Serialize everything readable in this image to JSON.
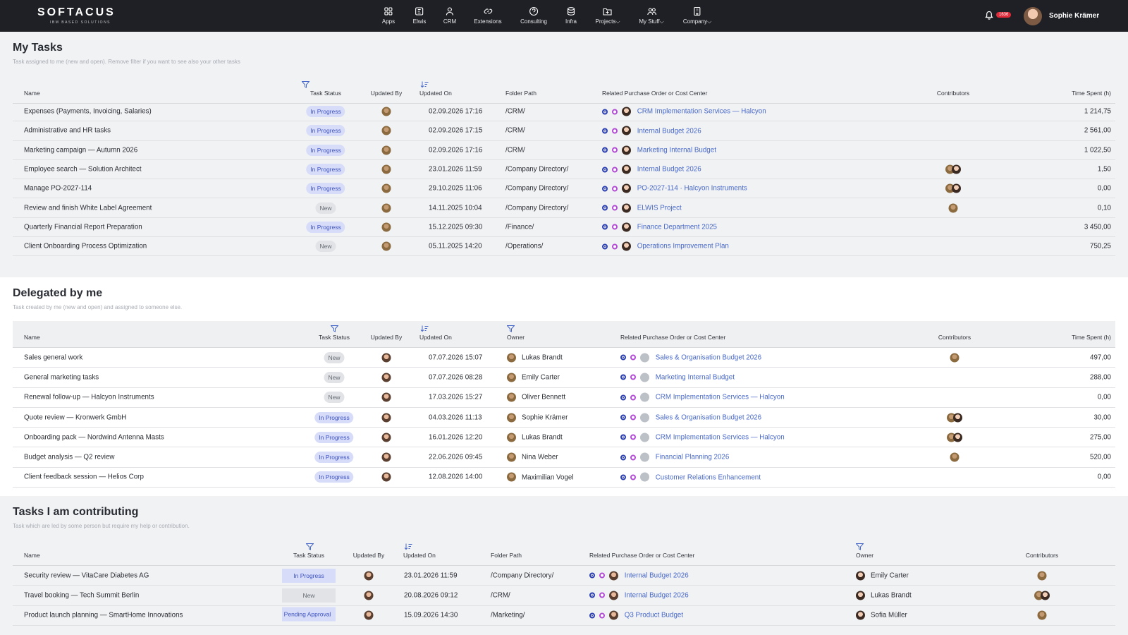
{
  "app": {
    "logo": "SOFTACUS",
    "logo_sub": "IBM BASED SOLUTIONS",
    "notif_count": "1636",
    "user": "Sophie Krämer"
  },
  "nav": [
    {
      "label": "Apps",
      "icon": "grid-icon"
    },
    {
      "label": "Elwis",
      "icon": "elwis-icon"
    },
    {
      "label": "CRM",
      "icon": "person-icon"
    },
    {
      "label": "Extensions",
      "icon": "link-icon"
    },
    {
      "label": "Consulting",
      "icon": "help-icon"
    },
    {
      "label": "Infra",
      "icon": "database-icon"
    },
    {
      "label": "Projects",
      "icon": "folder-icon",
      "dropdown": true
    },
    {
      "label": "My Stuff",
      "icon": "people-icon",
      "dropdown": true
    },
    {
      "label": "Company",
      "icon": "building-icon",
      "dropdown": true
    }
  ],
  "my_tasks": {
    "title": "My Tasks",
    "subtitle": "Task assigned to me (new and open). Remove filter if you want to see also your other tasks",
    "cols": {
      "name": "Name",
      "status": "Task Status",
      "updated_by": "Updated By",
      "updated_on": "Updated On",
      "folder": "Folder Path",
      "related": "Related Purchase Order or Cost Center",
      "contributors": "Contributors",
      "time": "Time Spent (h)"
    },
    "rows": [
      {
        "name": "Expenses (Payments, Invoicing, Salaries)",
        "status": "In Progress",
        "updated_on": "02.09.2026 17:16",
        "folder": "/CRM/",
        "related": "CRM Implementation Services — Halcyon",
        "contributors": 0,
        "time": "1 214,75"
      },
      {
        "name": "Administrative and HR tasks",
        "status": "In Progress",
        "updated_on": "02.09.2026 17:15",
        "folder": "/CRM/",
        "related": "Internal Budget 2026",
        "contributors": 0,
        "time": "2 561,00"
      },
      {
        "name": "Marketing campaign — Autumn 2026",
        "status": "In Progress",
        "updated_on": "02.09.2026 17:16",
        "folder": "/CRM/",
        "related": "Marketing Internal Budget",
        "contributors": 0,
        "time": "1 022,50"
      },
      {
        "name": "Employee search — Solution Architect",
        "status": "In Progress",
        "updated_on": "23.01.2026 11:59",
        "folder": "/Company Directory/",
        "related": "Internal Budget 2026",
        "contributors": 2,
        "time": "1,50"
      },
      {
        "name": "Manage PO-2027-114",
        "status": "In Progress",
        "updated_on": "29.10.2025 11:06",
        "folder": "/Company Directory/",
        "related": "PO-2027-114 · Halcyon Instruments",
        "contributors": 2,
        "time": "0,00"
      },
      {
        "name": "Review and finish White Label Agreement",
        "status": "New",
        "updated_on": "14.11.2025 10:04",
        "folder": "/Company Directory/",
        "related": "ELWIS Project",
        "contributors": 1,
        "time": "0,10"
      },
      {
        "name": "Quarterly Financial Report Preparation",
        "status": "In Progress",
        "updated_on": "15.12.2025 09:30",
        "folder": "/Finance/",
        "related": "Finance Department 2025",
        "contributors": 0,
        "time": "3 450,00"
      },
      {
        "name": "Client Onboarding Process Optimization",
        "status": "New",
        "updated_on": "05.11.2025 14:20",
        "folder": "/Operations/",
        "related": "Operations Improvement Plan",
        "contributors": 0,
        "time": "750,25"
      }
    ]
  },
  "delegated": {
    "title": "Delegated by me",
    "subtitle": "Task created by me (new and open) and assigned to someone else.",
    "cols": {
      "name": "Name",
      "status": "Task Status",
      "updated_by": "Updated By",
      "updated_on": "Updated On",
      "owner": "Owner",
      "related": "Related Purchase Order or Cost Center",
      "contributors": "Contributors",
      "time": "Time Spent (h)"
    },
    "rows": [
      {
        "name": "Sales general work",
        "status": "New",
        "updated_on": "07.07.2026 15:07",
        "owner": "Lukas Brandt",
        "related": "Sales & Organisation Budget 2026",
        "contributors": 1,
        "time": "497,00"
      },
      {
        "name": "General marketing tasks",
        "status": "New",
        "updated_on": "07.07.2026 08:28",
        "owner": "Emily Carter",
        "related": "Marketing Internal Budget",
        "contributors": 0,
        "time": "288,00"
      },
      {
        "name": "Renewal follow-up — Halcyon Instruments",
        "status": "New",
        "updated_on": "17.03.2026 15:27",
        "owner": "Oliver Bennett",
        "related": "CRM Implementation Services — Halcyon",
        "contributors": 0,
        "time": "0,00"
      },
      {
        "name": "Quote review — Kronwerk GmbH",
        "status": "In Progress",
        "updated_on": "04.03.2026 11:13",
        "owner": "Sophie Krämer",
        "related": "Sales & Organisation Budget 2026",
        "contributors": 2,
        "time": "30,00"
      },
      {
        "name": "Onboarding pack — Nordwind Antenna Masts",
        "status": "In Progress",
        "updated_on": "16.01.2026 12:20",
        "owner": "Lukas Brandt",
        "related": "CRM Implementation Services — Halcyon",
        "contributors": 2,
        "time": "275,00"
      },
      {
        "name": "Budget analysis — Q2 review",
        "status": "In Progress",
        "updated_on": "22.06.2026 09:45",
        "owner": "Nina Weber",
        "related": "Financial Planning 2026",
        "contributors": 1,
        "time": "520,00"
      },
      {
        "name": "Client feedback session — Helios Corp",
        "status": "In Progress",
        "updated_on": "12.08.2026 14:00",
        "owner": "Maximilian Vogel",
        "related": "Customer Relations Enhancement",
        "contributors": 0,
        "time": "0,00"
      }
    ]
  },
  "contributing": {
    "title": "Tasks I am contributing",
    "subtitle": "Task which are led by some person but require my help or contribution.",
    "cols": {
      "name": "Name",
      "status": "Task Status",
      "updated_by": "Updated By",
      "updated_on": "Updated On",
      "folder": "Folder Path",
      "related": "Related Purchase Order or Cost Center",
      "owner": "Owner",
      "contributors": "Contributors"
    },
    "rows": [
      {
        "name": "Security review — VitaCare Diabetes AG",
        "status": "In Progress",
        "updated_on": "23.01.2026 11:59",
        "folder": "/Company Directory/",
        "related": "Internal Budget 2026",
        "owner": "Emily Carter",
        "contributors": 1
      },
      {
        "name": "Travel booking — Tech Summit Berlin",
        "status": "New",
        "updated_on": "20.08.2026 09:12",
        "folder": "/CRM/",
        "related": "Internal Budget 2026",
        "owner": "Lukas Brandt",
        "contributors": 2
      },
      {
        "name": "Product launch planning — SmartHome Innovations",
        "status": "Pending Approval",
        "updated_on": "15.09.2026 14:30",
        "folder": "/Marketing/",
        "related": "Q3 Product Budget",
        "owner": "Sofia Müller",
        "contributors": 1
      }
    ]
  }
}
